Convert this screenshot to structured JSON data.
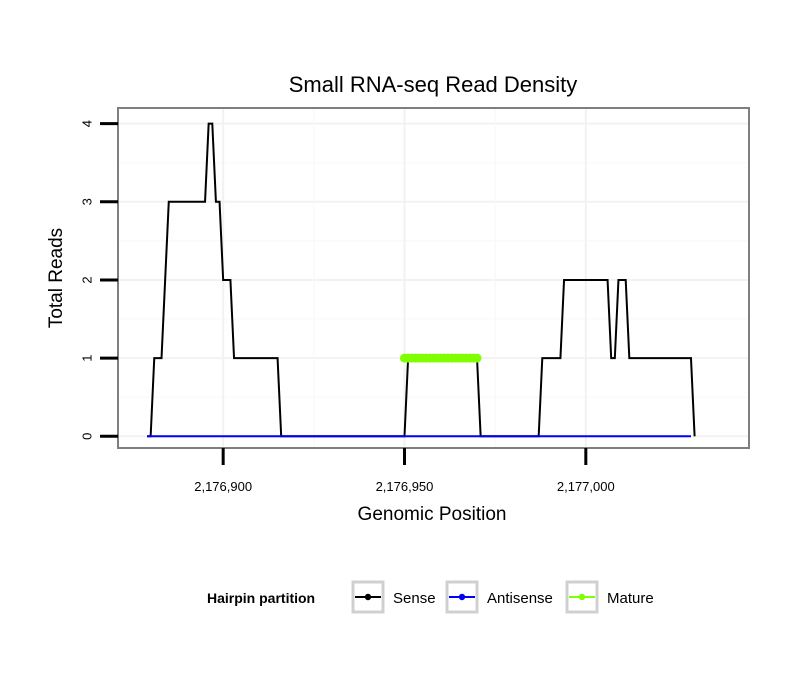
{
  "chart_data": {
    "type": "line",
    "title": "Small RNA-seq Read Density",
    "xlabel": "Genomic Position",
    "ylabel": "Total Reads",
    "xlim": [
      2176871,
      2177045
    ],
    "ylim": [
      -0.15,
      4.2
    ],
    "x_ticks": [
      2176900,
      2176950,
      2177000
    ],
    "x_tick_labels": [
      "2,176,900",
      "2,176,950",
      "2,177,000"
    ],
    "y_ticks": [
      0,
      1,
      2,
      3,
      4
    ],
    "y_tick_labels": [
      "0",
      "1",
      "2",
      "3",
      "4"
    ],
    "grid": true,
    "legend": {
      "title": "Hairpin partition",
      "position": "bottom"
    },
    "series": [
      {
        "name": "Sense",
        "color": "#000000",
        "kind": "line",
        "x": [
          2176879,
          2176880,
          2176881,
          2176882,
          2176883,
          2176884,
          2176885,
          2176886,
          2176895,
          2176896,
          2176897,
          2176898,
          2176899,
          2176900,
          2176901,
          2176902,
          2176903,
          2176904,
          2176905,
          2176906,
          2176907,
          2176915,
          2176916,
          2176950,
          2176951,
          2176970,
          2176971,
          2176987,
          2176988,
          2176993,
          2176994,
          2177006,
          2177007,
          2177008,
          2177009,
          2177010,
          2177011,
          2177012,
          2177013,
          2177029,
          2177030
        ],
        "y": [
          0,
          0,
          1,
          1,
          1,
          2,
          3,
          3,
          3,
          4,
          4,
          3,
          3,
          2,
          2,
          2,
          1,
          1,
          1,
          1,
          1,
          1,
          0,
          0,
          1,
          1,
          0,
          0,
          1,
          1,
          2,
          2,
          1,
          1,
          2,
          2,
          2,
          1,
          1,
          1,
          0
        ]
      },
      {
        "name": "Antisense",
        "color": "#0000ff",
        "kind": "line",
        "x": [
          2176879,
          2177029
        ],
        "y": [
          0,
          0
        ]
      },
      {
        "name": "Mature",
        "color": "#7fff00",
        "kind": "points",
        "x": [
          2176950,
          2176951,
          2176952,
          2176953,
          2176954,
          2176955,
          2176956,
          2176957,
          2176958,
          2176959,
          2176960,
          2176961,
          2176962,
          2176963,
          2176964,
          2176965,
          2176966,
          2176967,
          2176968,
          2176969,
          2176970
        ],
        "y": [
          1,
          1,
          1,
          1,
          1,
          1,
          1,
          1,
          1,
          1,
          1,
          1,
          1,
          1,
          1,
          1,
          1,
          1,
          1,
          1,
          1
        ]
      }
    ]
  }
}
